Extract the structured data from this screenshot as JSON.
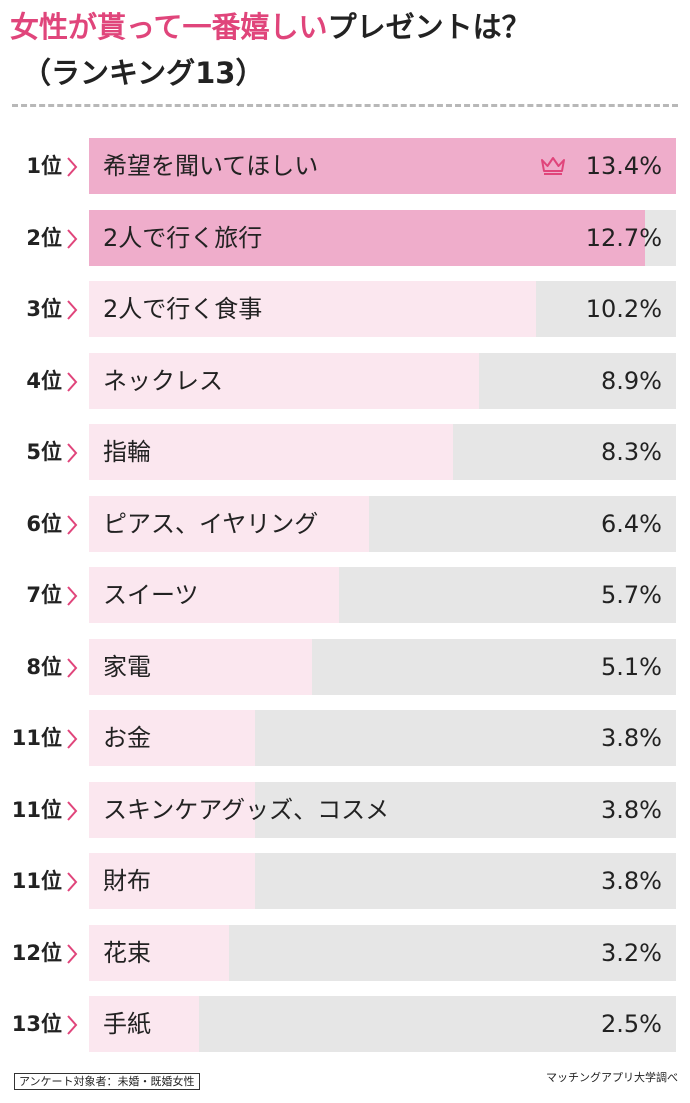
{
  "title": {
    "accent": "女性が貰って一番嬉しい",
    "rest": "プレゼントは？",
    "subtitle": "（ランキング13）"
  },
  "colors": {
    "accent": "#e0457b",
    "top_fill": "#efadcb",
    "fill": "#fbe7ef",
    "track": "#e6e6e6"
  },
  "chart_data": {
    "type": "bar",
    "orientation": "horizontal",
    "xlim": [
      0,
      13.4
    ],
    "unit": "%",
    "items": [
      {
        "rank": "1位",
        "label": "希望を聞いてほしい",
        "value": 13.4,
        "value_label": "13.4%",
        "highlight": true,
        "icon": "crown-icon"
      },
      {
        "rank": "2位",
        "label": "2人で行く旅行",
        "value": 12.7,
        "value_label": "12.7%",
        "highlight": true
      },
      {
        "rank": "3位",
        "label": "2人で行く食事",
        "value": 10.2,
        "value_label": "10.2%"
      },
      {
        "rank": "4位",
        "label": "ネックレス",
        "value": 8.9,
        "value_label": "8.9%"
      },
      {
        "rank": "5位",
        "label": "指輪",
        "value": 8.3,
        "value_label": "8.3%"
      },
      {
        "rank": "6位",
        "label": "ピアス、イヤリング",
        "value": 6.4,
        "value_label": "6.4%"
      },
      {
        "rank": "7位",
        "label": "スイーツ",
        "value": 5.7,
        "value_label": "5.7%"
      },
      {
        "rank": "8位",
        "label": "家電",
        "value": 5.1,
        "value_label": "5.1%"
      },
      {
        "rank": "11位",
        "label": "お金",
        "value": 3.8,
        "value_label": "3.8%"
      },
      {
        "rank": "11位",
        "label": "スキンケアグッズ、コスメ",
        "value": 3.8,
        "value_label": "3.8%"
      },
      {
        "rank": "11位",
        "label": "財布",
        "value": 3.8,
        "value_label": "3.8%"
      },
      {
        "rank": "12位",
        "label": "花束",
        "value": 3.2,
        "value_label": "3.2%"
      },
      {
        "rank": "13位",
        "label": "手紙",
        "value": 2.5,
        "value_label": "2.5%"
      }
    ]
  },
  "footer": {
    "note": "アンケート対象者：未婚・既婚女性",
    "source": "マッチングアプリ大学調べ"
  }
}
